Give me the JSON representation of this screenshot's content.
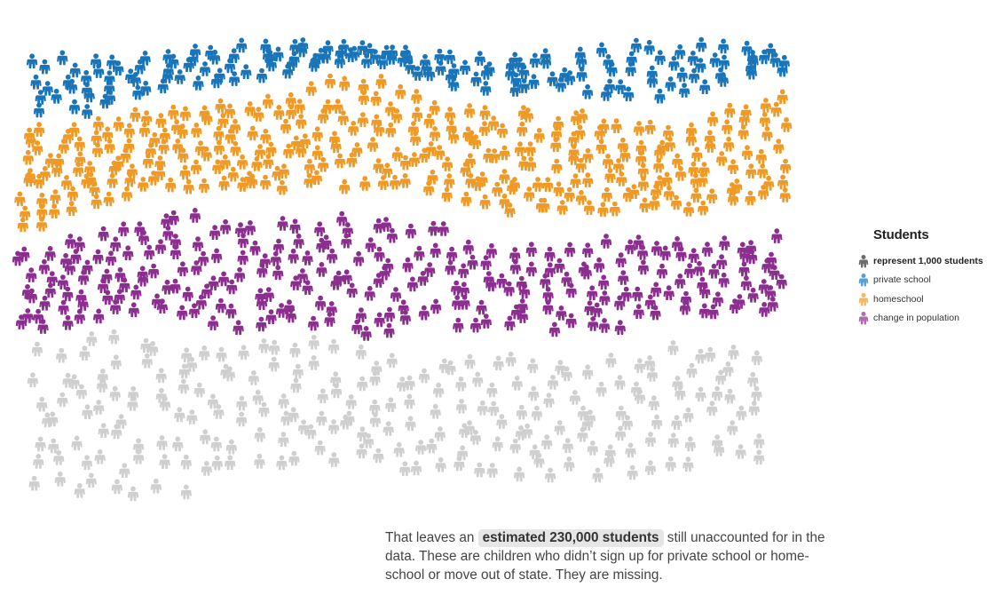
{
  "chart_data": {
    "type": "isotype",
    "unit": "represent 1,000 students",
    "legend": {
      "title": "Students",
      "items": [
        {
          "key": "unit",
          "label": "represent 1,000 students",
          "color": "#6b6b6b",
          "bold": true
        },
        {
          "key": "private",
          "label": "private school",
          "color": "#1a75b8"
        },
        {
          "key": "homeschool",
          "label": "homeschool",
          "color": "#ef9a26"
        },
        {
          "key": "population",
          "label": "change in population",
          "color": "#8b2e8f"
        }
      ]
    },
    "series": [
      {
        "name": "private school",
        "color": "#1a75b8",
        "count": 160
      },
      {
        "name": "homeschool",
        "color": "#ef9a26",
        "count": 310
      },
      {
        "name": "change in population",
        "color": "#8b2e8f",
        "count": 260
      },
      {
        "color": "#cfcfcf",
        "count": 230
      }
    ]
  },
  "caption": {
    "before": "That leaves an ",
    "highlight": "estimated 230,000 students",
    "after": " still unaccounted for in the data. These are children who didn’t sign up for private school or home-school or move out of state. They are missing."
  }
}
